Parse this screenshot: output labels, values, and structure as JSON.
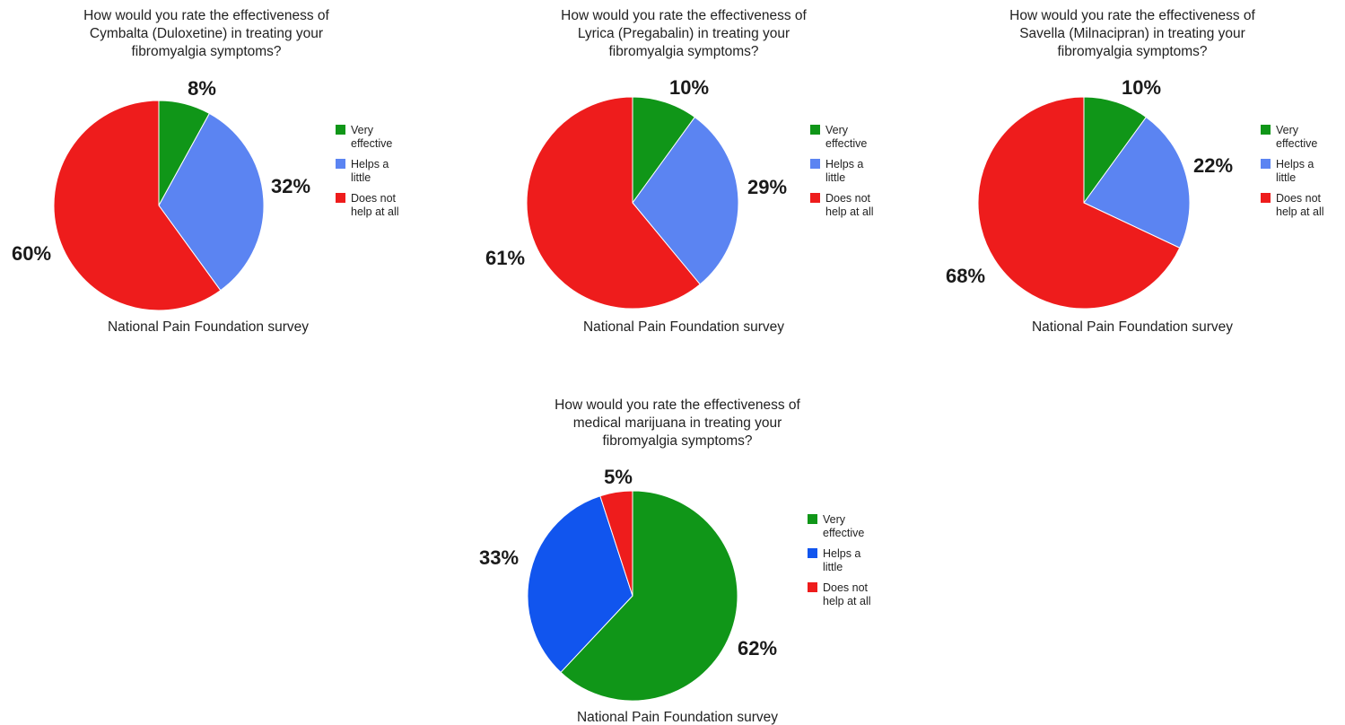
{
  "chart_data": [
    {
      "type": "pie",
      "title": [
        "How would you rate the effectiveness of",
        "Cymbalta (Duloxetine) in treating your",
        "fibromyalgia symptoms?"
      ],
      "caption": "National Pain Foundation survey",
      "categories": [
        "Very effective",
        "Helps a little",
        "Does not help at all"
      ],
      "legend_labels": [
        [
          "Very",
          "effective"
        ],
        [
          "Helps a",
          "little"
        ],
        [
          "Does not",
          "help at all"
        ]
      ],
      "values": [
        8,
        32,
        60
      ],
      "value_labels": [
        "8%",
        "32%",
        "60%"
      ],
      "colors": [
        "#109618",
        "#5b84f2",
        "#ee1c1c"
      ],
      "legend_position": "right"
    },
    {
      "type": "pie",
      "title": [
        "How would you rate the effectiveness of",
        "Lyrica (Pregabalin) in treating your",
        "fibromyalgia symptoms?"
      ],
      "caption": "National Pain Foundation survey",
      "categories": [
        "Very effective",
        "Helps a little",
        "Does not help at all"
      ],
      "legend_labels": [
        [
          "Very",
          "effective"
        ],
        [
          "Helps a",
          "little"
        ],
        [
          "Does not",
          "help at all"
        ]
      ],
      "values": [
        10,
        29,
        61
      ],
      "value_labels": [
        "10%",
        "29%",
        "61%"
      ],
      "colors": [
        "#109618",
        "#5b84f2",
        "#ee1c1c"
      ],
      "legend_position": "right"
    },
    {
      "type": "pie",
      "title": [
        "How would you rate the effectiveness of",
        "Savella (Milnacipran) in treating your",
        "fibromyalgia symptoms?"
      ],
      "caption": "National Pain Foundation survey",
      "categories": [
        "Very effective",
        "Helps a little",
        "Does not help at all"
      ],
      "legend_labels": [
        [
          "Very",
          "effective"
        ],
        [
          "Helps a",
          "little"
        ],
        [
          "Does not",
          "help at all"
        ]
      ],
      "values": [
        10,
        22,
        68
      ],
      "value_labels": [
        "10%",
        "22%",
        "68%"
      ],
      "colors": [
        "#109618",
        "#5b84f2",
        "#ee1c1c"
      ],
      "legend_position": "right"
    },
    {
      "type": "pie",
      "title": [
        "How would you rate the effectiveness of",
        "medical marijuana in treating your",
        "fibromyalgia symptoms?"
      ],
      "caption": "National Pain Foundation survey",
      "categories": [
        "Very effective",
        "Helps a little",
        "Does not help at all"
      ],
      "legend_labels": [
        [
          "Very",
          "effective"
        ],
        [
          "Helps a",
          "little"
        ],
        [
          "Does not",
          "help at all"
        ]
      ],
      "values": [
        62,
        33,
        5
      ],
      "value_labels": [
        "62%",
        "33%",
        "5%"
      ],
      "colors": [
        "#109618",
        "#1155ee",
        "#ee1c1c"
      ],
      "legend_position": "right"
    }
  ]
}
